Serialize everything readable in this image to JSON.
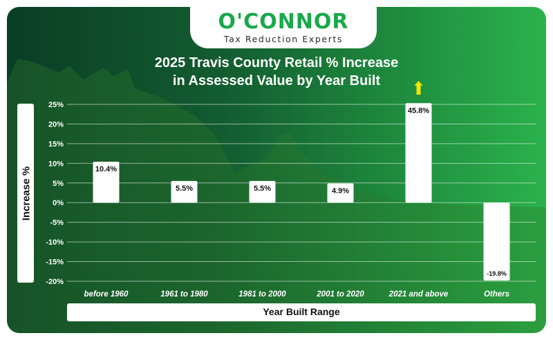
{
  "logo": {
    "brand": "O'CONNOR",
    "tagline": "Tax Reduction Experts"
  },
  "colors": {
    "brand_green": "#1aa84a",
    "bar_fill": "#ffffff",
    "arrow": "#f2e600"
  },
  "chart_data": {
    "type": "bar",
    "title_line1": "2025 Travis County Retail % Increase",
    "title_line2": "in Assessed Value by Year Built",
    "xlabel": "Year Built Range",
    "ylabel": "Increase %",
    "categories": [
      "before 1960",
      "1961 to 1980",
      "1981 to 2000",
      "2001 to 2020",
      "2021 and above",
      "Others"
    ],
    "values": [
      10.4,
      5.5,
      5.5,
      4.9,
      45.8,
      -19.8
    ],
    "value_labels": [
      "10.4%",
      "5.5%",
      "5.5%",
      "4.9%",
      "45.8%",
      "-19.8%"
    ],
    "ylim": [
      -20,
      25
    ],
    "yticks": [
      25,
      20,
      15,
      10,
      5,
      0,
      -5,
      -10,
      -15,
      -20
    ],
    "ytick_labels": [
      "25%",
      "20%",
      "15%",
      "10%",
      "5%",
      "0%",
      "-5%",
      "-10%",
      "-15%",
      "-20%"
    ],
    "clipped_indicator": "up-arrow-above-2021-and-above",
    "grid": true
  }
}
